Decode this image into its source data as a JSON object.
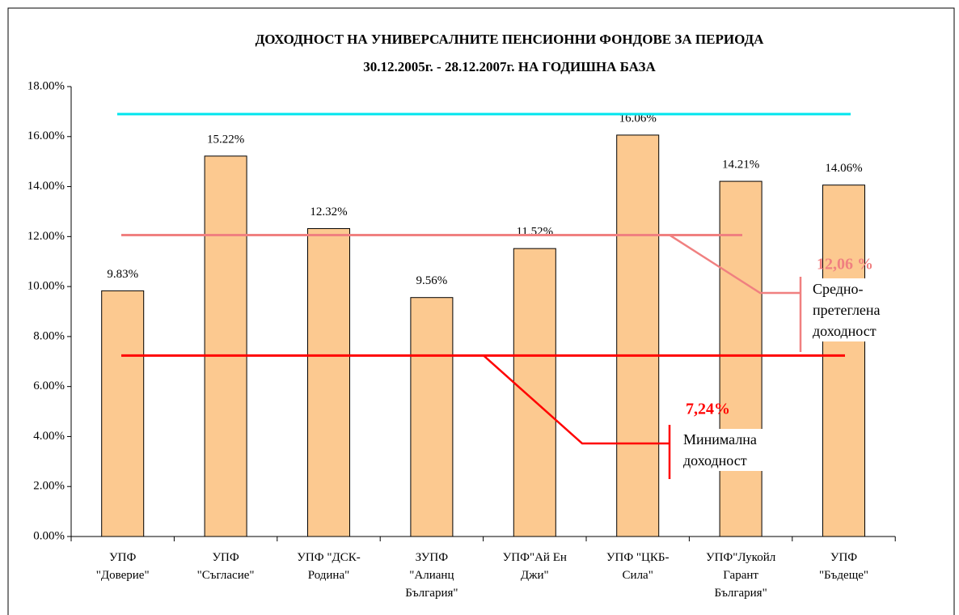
{
  "chart_data": {
    "type": "bar",
    "title": "ДОХОДНОСТ НА УНИВЕРСАЛНИТЕ ПЕНСИОННИ ФОНДОВЕ ЗА ПЕРИОДА",
    "subtitle": "30.12.2005г. - 28.12.2007г. НА ГОДИШНА БАЗА",
    "categories": [
      "УПФ \"Доверие\"",
      "УПФ \"Съгласие\"",
      "УПФ \"ДСК-Родина\"",
      "ЗУПФ \"Алианц България\"",
      "УПФ\"Ай Ен Джи\"",
      "УПФ \"ЦКБ-Сила\"",
      "УПФ\"Лукойл Гарант България\"",
      "УПФ \"Бъдеще\""
    ],
    "values": [
      9.83,
      15.22,
      12.32,
      9.56,
      11.52,
      16.06,
      14.21,
      14.06
    ],
    "value_labels": [
      "9.83%",
      "15.22%",
      "12.32%",
      "9.56%",
      "11.52%",
      "16.06%",
      "14.21%",
      "14.06%"
    ],
    "color": "#fcc990",
    "ylim": [
      0,
      18
    ],
    "yticks": [
      {
        "value": 0,
        "label": "0.00%"
      },
      {
        "value": 2,
        "label": "2.00%"
      },
      {
        "value": 4,
        "label": "4.00%"
      },
      {
        "value": 6,
        "label": "6.00%"
      },
      {
        "value": 8,
        "label": "8.00%"
      },
      {
        "value": 10,
        "label": "10.00%"
      },
      {
        "value": 12,
        "label": "12.00%"
      },
      {
        "value": 14,
        "label": "14.00%"
      },
      {
        "value": 16,
        "label": "16.00%"
      },
      {
        "value": 18,
        "label": "18.00%"
      }
    ],
    "reference_lines": [
      {
        "value": 16.9,
        "color": "#00e5ee"
      },
      {
        "value": 12.06,
        "label": "12,06 %",
        "text": "Средно-претеглена доходност",
        "color": "#f08080"
      },
      {
        "value": 7.24,
        "label": "7,24%",
        "text": "Минимална доходност",
        "color": "#ff0000"
      }
    ]
  }
}
